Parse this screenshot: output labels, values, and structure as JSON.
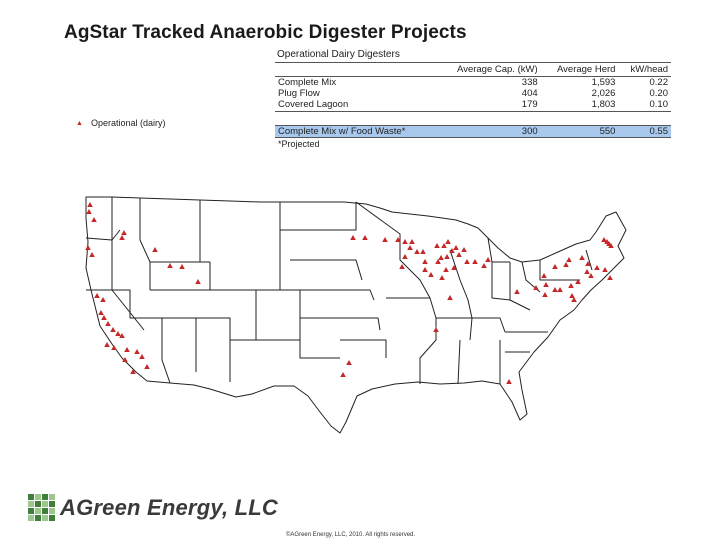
{
  "title": "AgStar Tracked Anaerobic Digester Projects",
  "legend": {
    "marker": "triangle",
    "color": "#c62828",
    "label": "Operational (dairy)"
  },
  "table": {
    "caption": "Operational Dairy Digesters",
    "columns": [
      "",
      "Average Cap. (kW)",
      "Average Herd",
      "kW/head"
    ],
    "rows": [
      [
        "Complete Mix",
        "338",
        "1,593",
        "0.22"
      ],
      [
        "Plug Flow",
        "404",
        "2,026",
        "0.20"
      ],
      [
        "Covered Lagoon",
        "179",
        "1,803",
        "0.10"
      ]
    ],
    "highlight_row": [
      "Complete Mix w/ Food Waste*",
      "300",
      "550",
      "0.55"
    ],
    "footnote": "*Projected"
  },
  "logo": {
    "text": "AGreen Energy, LLC",
    "grid_colors": [
      "#3f7f3a",
      "#9cc78f",
      "#3f7f3a",
      "#9cc78f",
      "#9cc78f",
      "#3f7f3a",
      "#9cc78f",
      "#3f7f3a",
      "#3f7f3a",
      "#9cc78f",
      "#3f7f3a",
      "#9cc78f",
      "#9cc78f",
      "#3f7f3a",
      "#9cc78f",
      "#3f7f3a"
    ]
  },
  "copyright": "©AGreen Energy, LLC, 2010. All rights reserved.",
  "map": {
    "outline_color": "#222222",
    "marker_color": "#c62828",
    "markers": [
      [
        90,
        205
      ],
      [
        89,
        212
      ],
      [
        94,
        220
      ],
      [
        124,
        233
      ],
      [
        122,
        238
      ],
      [
        88,
        248
      ],
      [
        92,
        255
      ],
      [
        155,
        250
      ],
      [
        170,
        266
      ],
      [
        182,
        267
      ],
      [
        198,
        282
      ],
      [
        97,
        296
      ],
      [
        103,
        300
      ],
      [
        101,
        313
      ],
      [
        104,
        318
      ],
      [
        108,
        324
      ],
      [
        113,
        330
      ],
      [
        118,
        334
      ],
      [
        122,
        336
      ],
      [
        107,
        345
      ],
      [
        127,
        350
      ],
      [
        137,
        352
      ],
      [
        142,
        357
      ],
      [
        147,
        367
      ],
      [
        133,
        372
      ],
      [
        125,
        360
      ],
      [
        114,
        348
      ],
      [
        353,
        238
      ],
      [
        365,
        238
      ],
      [
        385,
        240
      ],
      [
        398,
        240
      ],
      [
        405,
        242
      ],
      [
        412,
        242
      ],
      [
        405,
        257
      ],
      [
        402,
        267
      ],
      [
        410,
        248
      ],
      [
        417,
        252
      ],
      [
        423,
        252
      ],
      [
        425,
        262
      ],
      [
        437,
        246
      ],
      [
        438,
        262
      ],
      [
        441,
        258
      ],
      [
        444,
        246
      ],
      [
        448,
        242
      ],
      [
        447,
        257
      ],
      [
        452,
        251
      ],
      [
        456,
        248
      ],
      [
        459,
        255
      ],
      [
        454,
        268
      ],
      [
        464,
        250
      ],
      [
        467,
        262
      ],
      [
        475,
        262
      ],
      [
        488,
        260
      ],
      [
        484,
        266
      ],
      [
        431,
        275
      ],
      [
        442,
        278
      ],
      [
        446,
        270
      ],
      [
        450,
        298
      ],
      [
        436,
        330
      ],
      [
        425,
        270
      ],
      [
        555,
        267
      ],
      [
        566,
        265
      ],
      [
        569,
        260
      ],
      [
        582,
        258
      ],
      [
        588,
        264
      ],
      [
        597,
        268
      ],
      [
        591,
        276
      ],
      [
        544,
        276
      ],
      [
        546,
        285
      ],
      [
        555,
        290
      ],
      [
        560,
        290
      ],
      [
        571,
        286
      ],
      [
        578,
        282
      ],
      [
        572,
        296
      ],
      [
        545,
        295
      ],
      [
        536,
        288
      ],
      [
        574,
        300
      ],
      [
        587,
        272
      ],
      [
        607,
        242
      ],
      [
        609,
        244
      ],
      [
        604,
        240
      ],
      [
        611,
        246
      ],
      [
        605,
        270
      ],
      [
        610,
        278
      ],
      [
        343,
        375
      ],
      [
        349,
        363
      ],
      [
        517,
        292
      ],
      [
        509,
        382
      ]
    ]
  }
}
